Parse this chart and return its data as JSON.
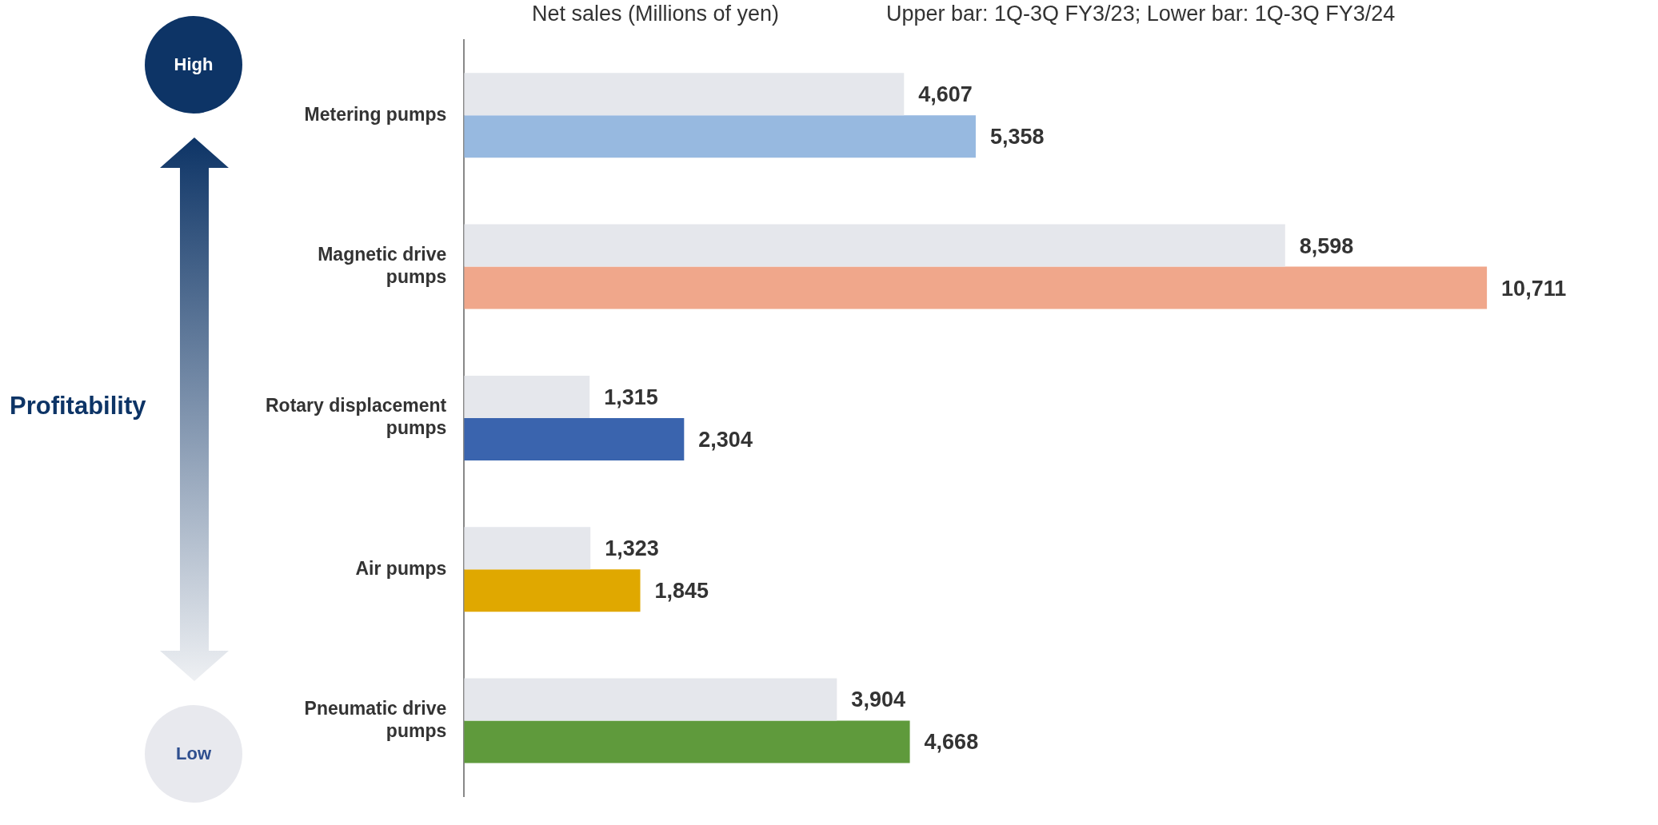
{
  "chart_data": {
    "type": "bar",
    "orientation": "horizontal",
    "categories": [
      "Metering pumps",
      "Magnetic drive pumps",
      "Rotary displacement pumps",
      "Air pumps",
      "Pneumatic drive pumps"
    ],
    "series": [
      {
        "color": "#e5e7ec",
        "values": [
          4607,
          8598,
          1315,
          1323,
          3904
        ],
        "value_labels": [
          "4,607",
          "8,598",
          "1,315",
          "1,323",
          "3,904"
        ]
      },
      {
        "colors": [
          "#97b9e0",
          "#f0a78b",
          "#3a64ae",
          "#e0a800",
          "#5f9a3c"
        ],
        "values": [
          5358,
          10711,
          2304,
          1845,
          4668
        ],
        "value_labels": [
          "5,358",
          "10,711",
          "2,304",
          "1,845",
          "4,668"
        ]
      }
    ],
    "annotations": [
      "Net sales (Millions of yen)",
      "Upper bar: 1Q-3Q FY3/23; Lower bar: 1Q-3Q FY3/24",
      "Profitability",
      "High",
      "Low"
    ]
  }
}
